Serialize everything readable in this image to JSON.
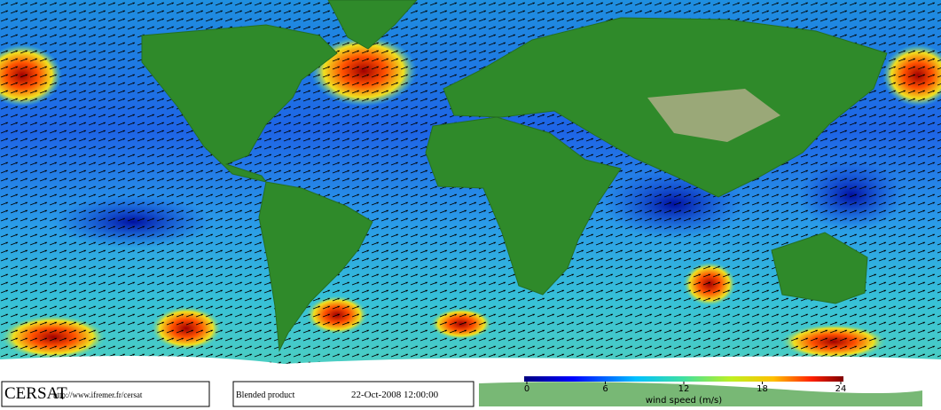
{
  "footer": {
    "logo": "CERSAT",
    "url": "http://www.ifremer.fr/cersat",
    "product": "Blended product",
    "date": "22-Oct-2008 12:00:00"
  },
  "colorbar": {
    "label": "wind speed (m/s)",
    "lim": [
      0,
      24
    ],
    "ticks": [
      0,
      6,
      12,
      18,
      24
    ]
  }
}
